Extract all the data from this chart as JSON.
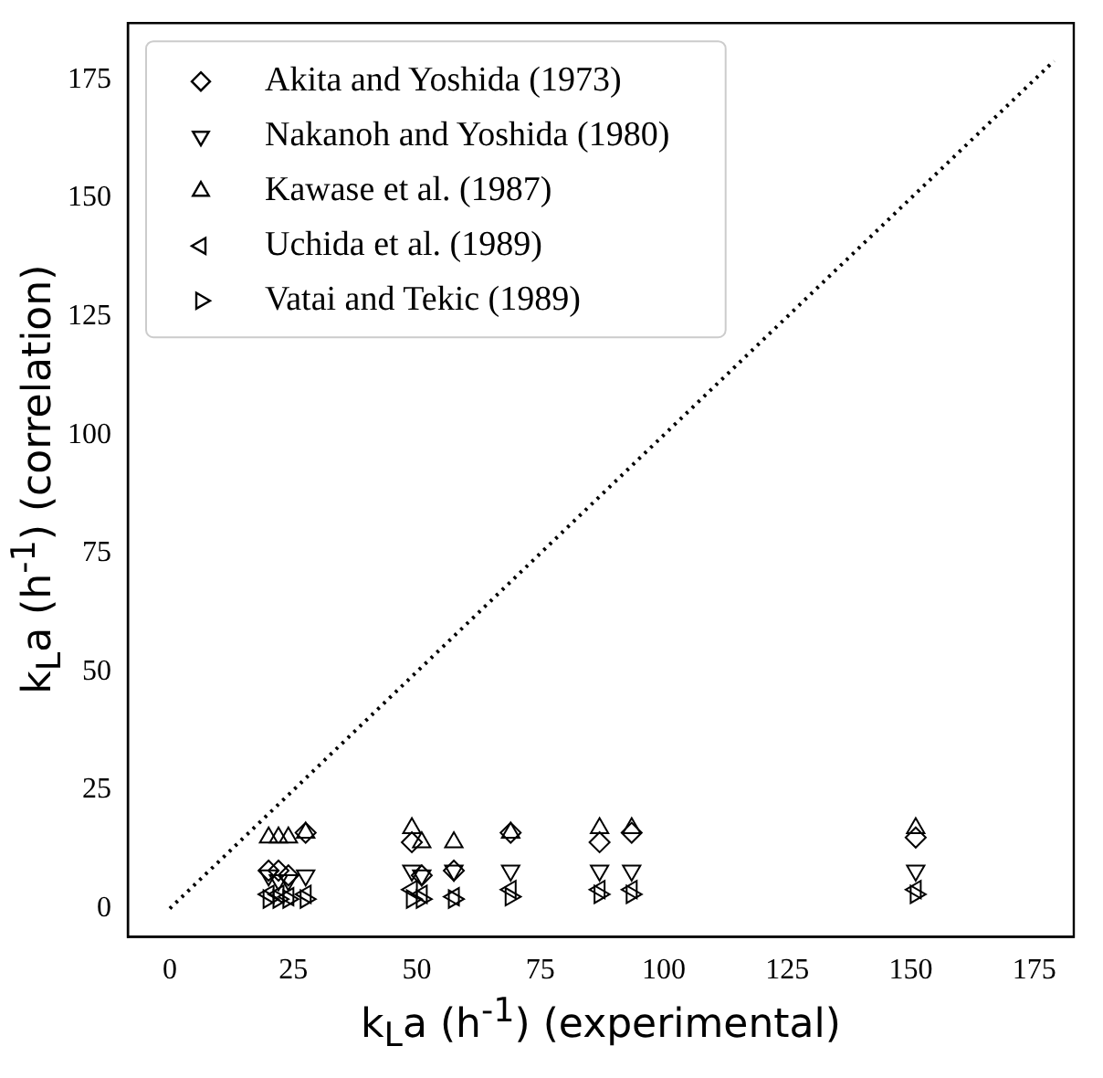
{
  "chart_data": {
    "type": "scatter",
    "xlabel": "k$_{L}$a (h$^{-1}$) (experimental)",
    "ylabel": "k$_{L}$a (h$^{-1}$) (correlation)",
    "x": [
      20,
      22,
      24,
      27.5,
      49,
      51,
      57.5,
      69,
      87,
      93.5,
      151
    ],
    "series": [
      {
        "name": "Akita and Yoshida (1973)",
        "color": "#000000",
        "marker": "diamond",
        "values": [
          8,
          8,
          7,
          16,
          14,
          7,
          8,
          16,
          14,
          16,
          15
        ]
      },
      {
        "name": "Nakanoh and Yoshida (1980)",
        "color": "#000000",
        "marker": "triangle-down",
        "values": [
          7,
          6,
          6,
          7,
          8,
          7,
          8,
          8,
          8,
          8,
          8
        ]
      },
      {
        "name": "Kawase et al. (1987)",
        "color": "#000000",
        "marker": "triangle",
        "values": [
          15,
          15,
          15,
          16,
          17,
          14,
          14,
          16,
          17,
          17,
          17
        ]
      },
      {
        "name": "Uchida et al. (1989)",
        "color": "#000000",
        "marker": "triangle-left",
        "values": [
          3,
          3,
          2.5,
          3,
          4,
          3,
          2.5,
          4,
          4,
          4,
          4
        ]
      },
      {
        "name": "Vatai and Tekic (1989)",
        "color": "#000000",
        "marker": "triangle-right",
        "values": [
          2,
          2,
          2,
          2,
          2,
          2,
          2,
          2.5,
          3,
          3,
          3
        ]
      },
      {
        "type": "line",
        "color": "#000000",
        "marker": "none",
        "line_style": "dotted",
        "x": [
          0,
          179
        ],
        "values": [
          0,
          179
        ]
      }
    ],
    "xlim": [
      -8.5,
      183
    ],
    "ylim": [
      -6,
      187
    ],
    "xticks": [
      0,
      25,
      50,
      75,
      100,
      125,
      150,
      175
    ],
    "yticks": [
      0,
      25,
      50,
      75,
      100,
      125,
      150,
      175
    ],
    "grid": false,
    "legend": "top left"
  }
}
